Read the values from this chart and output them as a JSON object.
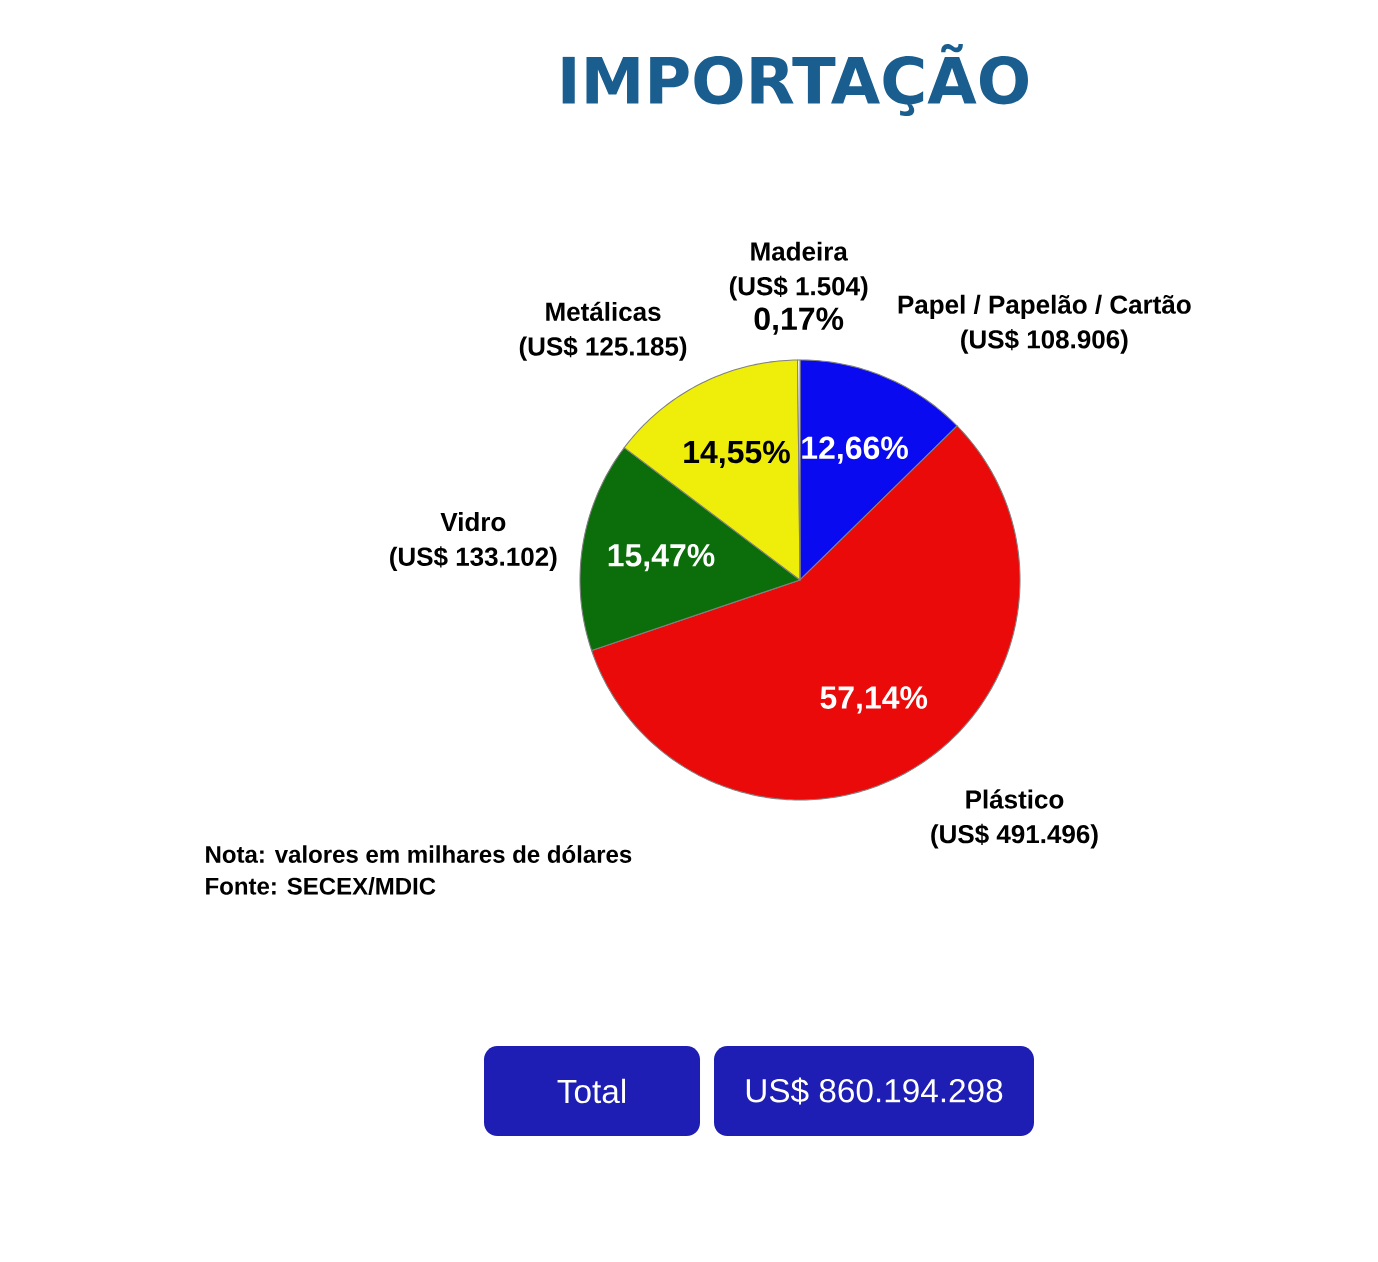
{
  "chart_data": {
    "type": "pie",
    "title": "IMPORTAÇÃO",
    "categories": [
      "Papel / Papelão / Cartão",
      "Plástico",
      "Vidro",
      "Metálicas",
      "Madeira"
    ],
    "values": [
      108906,
      491496,
      133102,
      125185,
      1504
    ],
    "colors": [
      "#0a0af0",
      "#ea0a0a",
      "#0b6e0b",
      "#eeee0a",
      "#ffffff"
    ],
    "value_labels": [
      "(US$ 108.906)",
      "(US$ 491.496)",
      "(US$ 133.102)",
      "(US$ 125.185)",
      "(US$ 1.504)"
    ],
    "annotations": [
      {
        "text": "12,66%",
        "x": "Papel / Papelão / Cartão"
      },
      {
        "text": "57,14%",
        "x": "Plástico"
      },
      {
        "text": "15,47%",
        "x": "Vidro"
      },
      {
        "text": "14,55%",
        "x": "Metálicas"
      },
      {
        "text": "0,17%",
        "x": "Madeira"
      },
      "Nota: valores em milhares de dólares",
      "Fonte: SECEX/MDIC",
      "Total",
      "US$ 860.194.298"
    ]
  }
}
